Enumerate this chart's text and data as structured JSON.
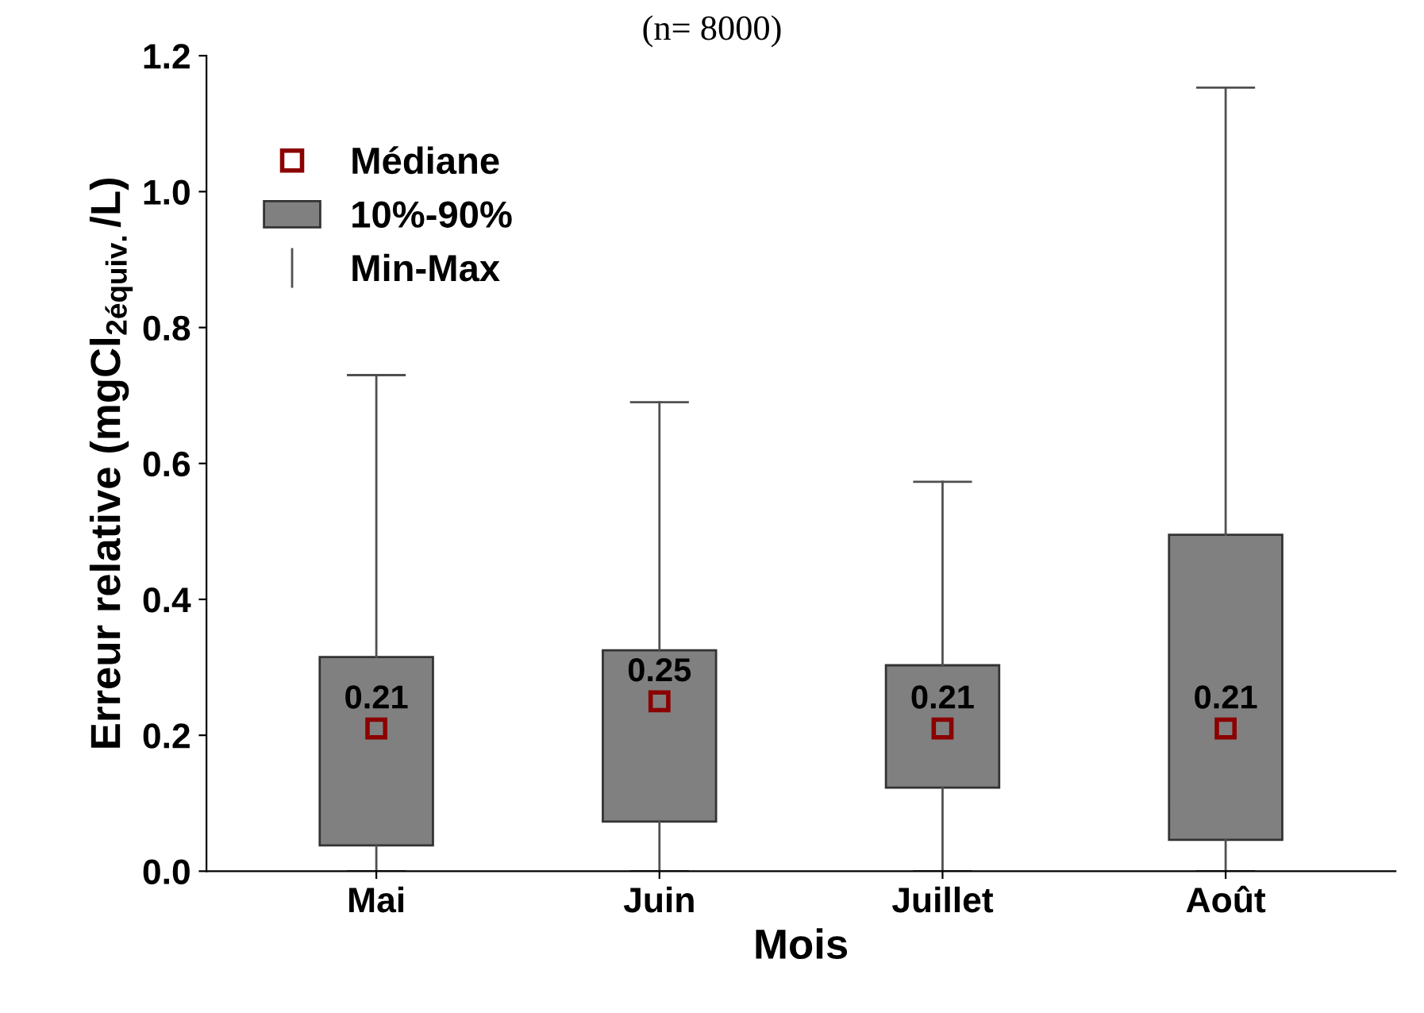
{
  "chart_data": {
    "type": "box",
    "title": "(n= 8000)",
    "xlabel": "Mois",
    "ylabel": "Erreur relative (mgCl$_{2équiv.}$/L)",
    "categories": [
      "Mai",
      "Juin",
      "Juillet",
      "Août"
    ],
    "series": [
      {
        "name": "10%-90%",
        "color": "#808080",
        "boxes": [
          {
            "low": 0.0,
            "q1": 0.038,
            "median": 0.21,
            "q3": 0.315,
            "high": 0.73
          },
          {
            "low": 0.0,
            "q1": 0.073,
            "median": 0.25,
            "q3": 0.325,
            "high": 0.69
          },
          {
            "low": 0.0,
            "q1": 0.123,
            "median": 0.21,
            "q3": 0.303,
            "high": 0.573
          },
          {
            "low": 0.0,
            "q1": 0.046,
            "median": 0.21,
            "q3": 0.495,
            "high": 1.153
          }
        ],
        "value_labels": [
          "0.21",
          "0.25",
          "0.21",
          "0.21"
        ]
      }
    ],
    "annotations": [
      "Médiane",
      "Min-Max"
    ],
    "marker": "square",
    "ylim": [
      0.0,
      1.2
    ],
    "yticks": [
      {
        "value": 0.0,
        "label": "0.0"
      },
      0.2,
      0.4,
      0.6,
      0.8,
      {
        "value": 1.0,
        "label": "1.0"
      },
      1.2
    ],
    "grid": false,
    "legend": "top left"
  }
}
